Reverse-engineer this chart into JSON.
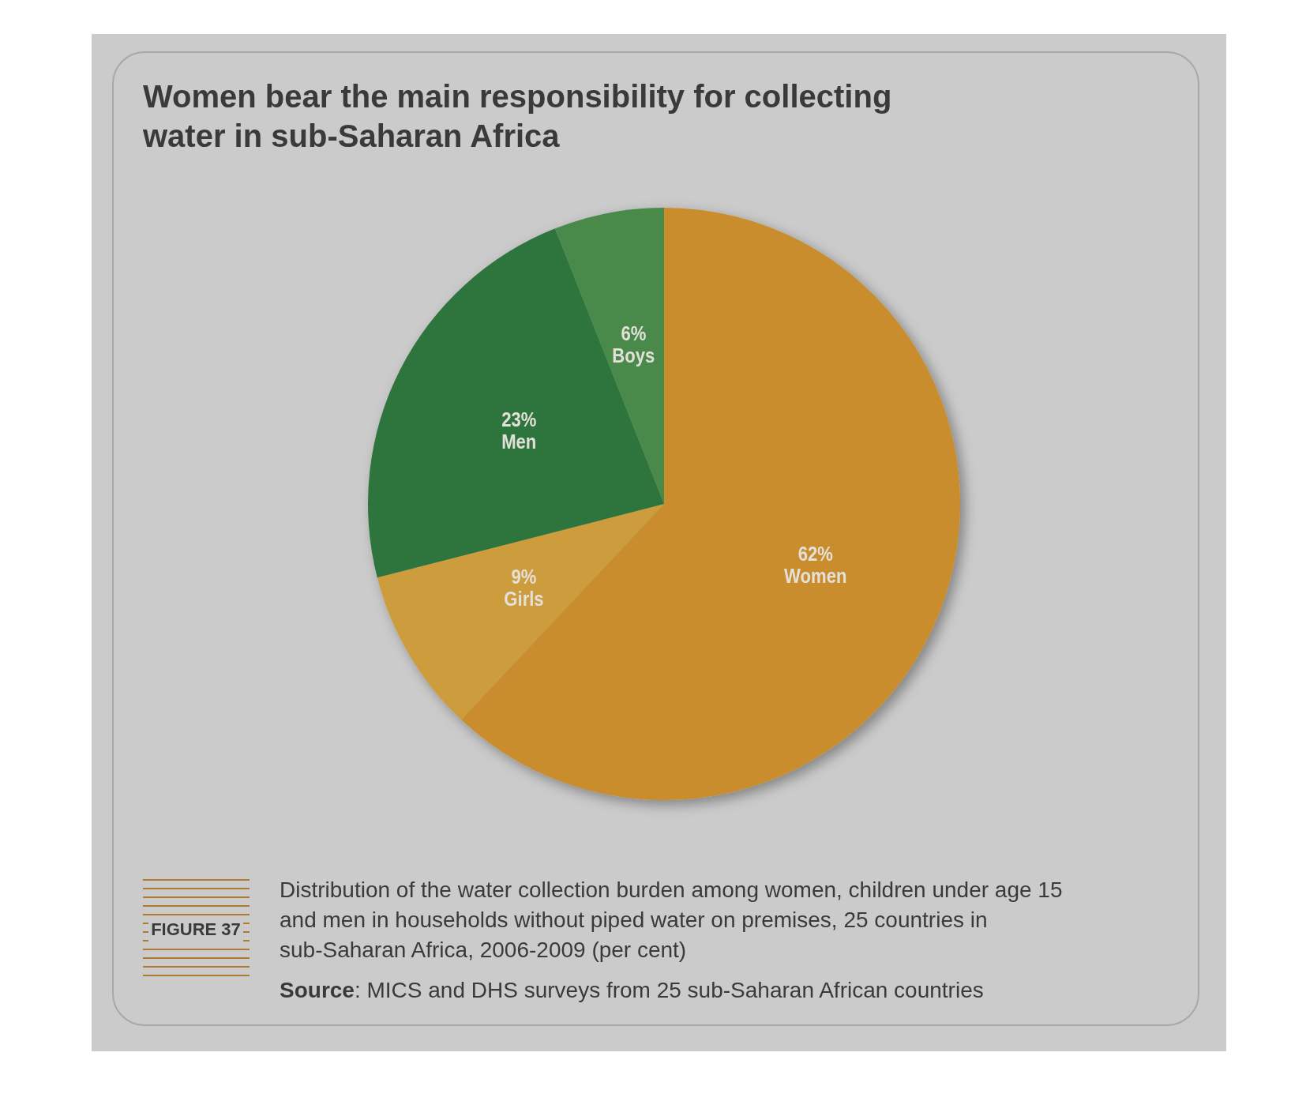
{
  "chart_data": {
    "type": "pie",
    "title": "Women bear the main responsibility for collecting water in sub-Saharan Africa",
    "categories": [
      "Women",
      "Girls",
      "Men",
      "Boys"
    ],
    "values": [
      62,
      9,
      23,
      6
    ],
    "colors": [
      "#c98d2e",
      "#cc9c3e",
      "#2e743e",
      "#4a8a4c"
    ],
    "value_labels": [
      "62%",
      "9%",
      "23%",
      "6%"
    ],
    "annotations": [
      "FIGURE 37",
      "Distribution of the water collection burden among women, children under age 15 and men in households without piped water on premises, 25 countries in sub-Saharan Africa, 2006-2009 (per cent)",
      "Source: MICS and DHS surveys from 25 sub-Saharan African countries"
    ]
  }
}
